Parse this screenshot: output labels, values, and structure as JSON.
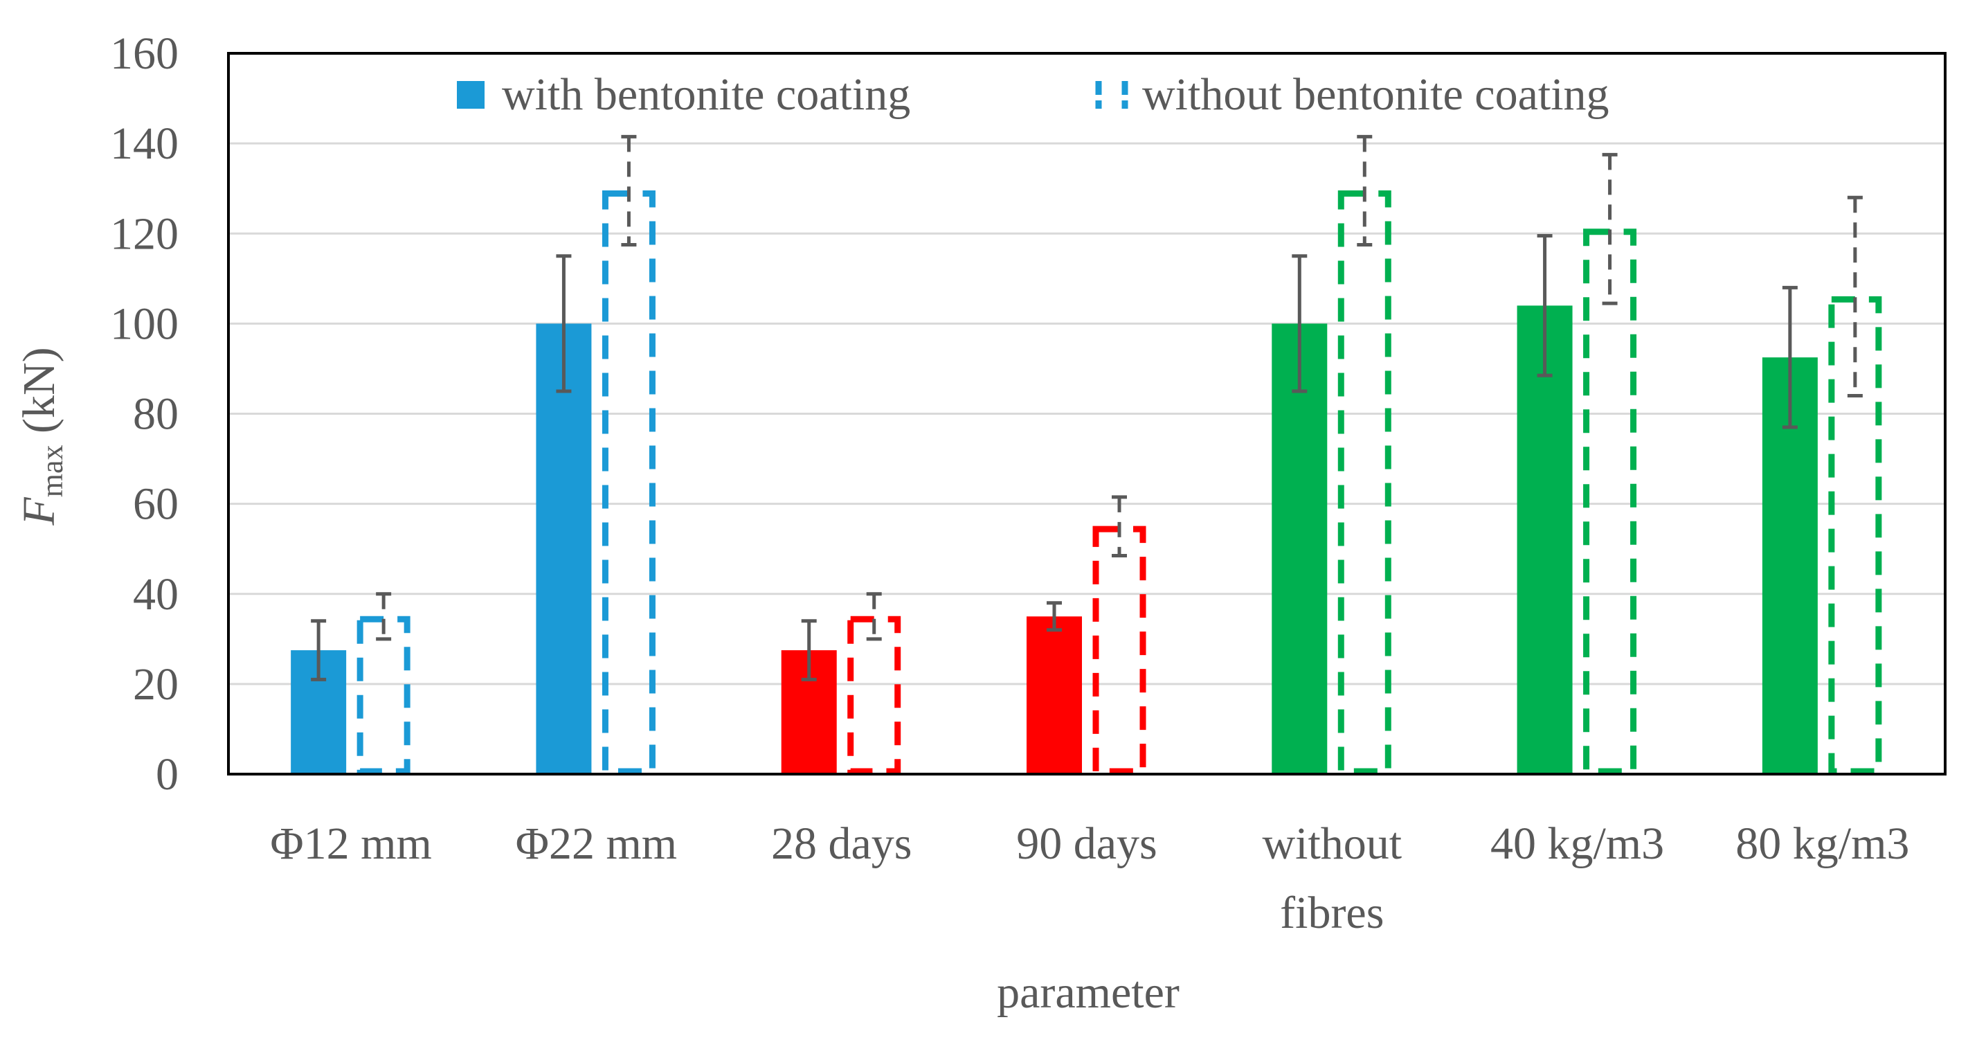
{
  "chart_data": {
    "type": "bar",
    "title": "",
    "xlabel": "parameter",
    "ylabel": {
      "main": "F",
      "sub": "max",
      "rest": " (kN)"
    },
    "ylim": [
      0,
      160
    ],
    "yticks": [
      0,
      20,
      40,
      60,
      80,
      100,
      120,
      140,
      160
    ],
    "grid": true,
    "legend_position": "top-center",
    "categories": [
      [
        "Φ12 mm"
      ],
      [
        "Φ22 mm"
      ],
      [
        "28 days"
      ],
      [
        "90 days"
      ],
      [
        "without",
        "fibres"
      ],
      [
        "40 kg/m3"
      ],
      [
        "80 kg/m3"
      ]
    ],
    "category_colors": [
      "#1b9ad6",
      "#1b9ad6",
      "#ff0000",
      "#ff0000",
      "#00b050",
      "#00b050",
      "#00b050"
    ],
    "error_bar_color": "#595959",
    "legend_swatch_color": "#1b9ad6",
    "series": [
      {
        "name": "with bentonite coating",
        "style": "solid",
        "values": [
          27.5,
          100,
          27.5,
          35,
          100,
          104,
          92.5
        ],
        "error": [
          6.5,
          15,
          6.5,
          3,
          15,
          15.5,
          15.5
        ]
      },
      {
        "name": "without bentonite coating",
        "style": "dashed",
        "values": [
          35,
          129.5,
          35,
          55,
          129.5,
          121,
          106
        ],
        "error": [
          5,
          12,
          5,
          6.5,
          12,
          16.5,
          22
        ]
      }
    ]
  }
}
